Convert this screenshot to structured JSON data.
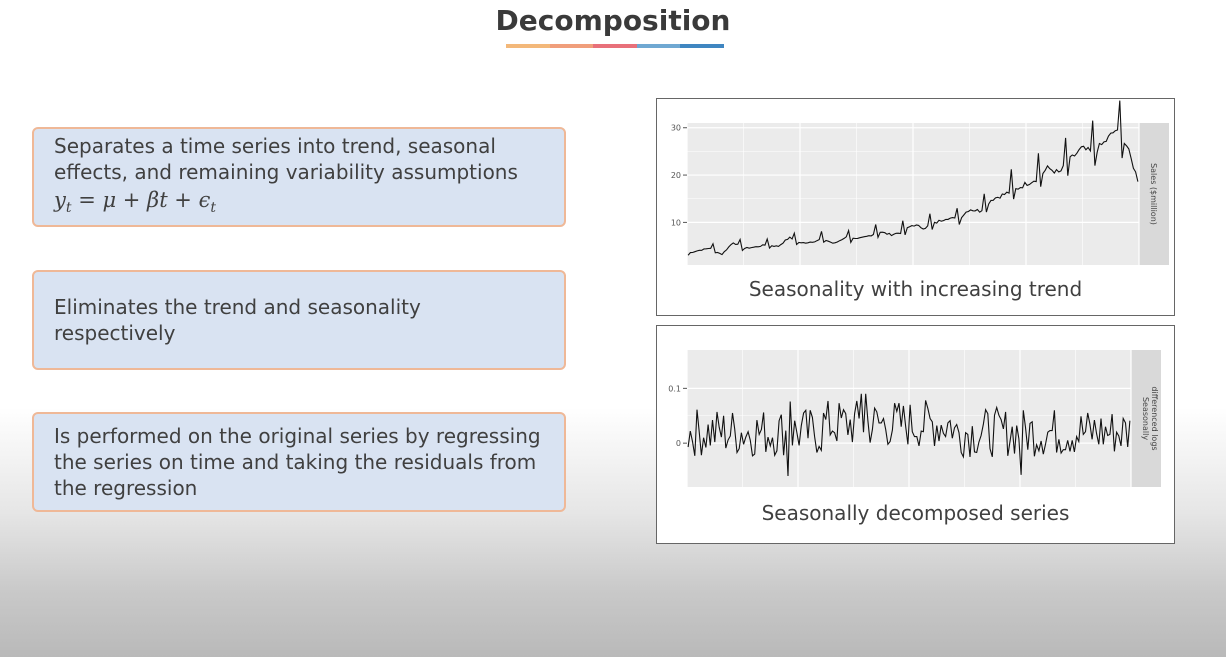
{
  "slide": {
    "title": "Decomposition",
    "underline_colors": [
      "#f3b87a",
      "#f09e7b",
      "#e8707a",
      "#6fa8d2",
      "#3f86c1"
    ],
    "cards": [
      {
        "text": "Separates a time series into trend, seasonal effects, and remaining variability assumptions",
        "formula": {
          "y": "y",
          "sub": "t",
          "rest": " = μ + βt + ϵ",
          "sub2": "t"
        }
      },
      {
        "text": "Eliminates the trend and seasonality respectively"
      },
      {
        "text": "Is performed on the original series by regressing the series on time and taking the residuals from the regression"
      }
    ]
  },
  "chart_data": [
    {
      "type": "line",
      "caption": "Seasonality with increasing trend",
      "ylabel": "Sales ($million)",
      "yticks": [
        10,
        20,
        30
      ],
      "ylim": [
        1,
        31
      ],
      "xlim": [
        0,
        200
      ],
      "grid": true,
      "seed_series": [
        3.5,
        4.1,
        4.6,
        3.2,
        5.8,
        4.5,
        4.8,
        5.3,
        4.9,
        6.8,
        5.6,
        5.9,
        6.5,
        5.5,
        6.9,
        6.4,
        7.1,
        8.0,
        7.4,
        7.9,
        9.5,
        8.8,
        9.9,
        11.0,
        10.6,
        12.8,
        12.4,
        14.9,
        15.8,
        16.8,
        18.1,
        19.2,
        21.5,
        20.4,
        23.3,
        25.6,
        24.7,
        26.8,
        29.5,
        26.2,
        19.0
      ],
      "series": [
        {
          "values": []
        }
      ]
    },
    {
      "type": "line",
      "caption": "Seasonally decomposed series",
      "ylabel": "Seasonally differenced logs",
      "yticks": [
        0.0,
        0.1
      ],
      "ylim": [
        -0.08,
        0.17
      ],
      "xlim": [
        0,
        200
      ],
      "grid": true,
      "series": [
        {
          "values": []
        }
      ]
    }
  ]
}
